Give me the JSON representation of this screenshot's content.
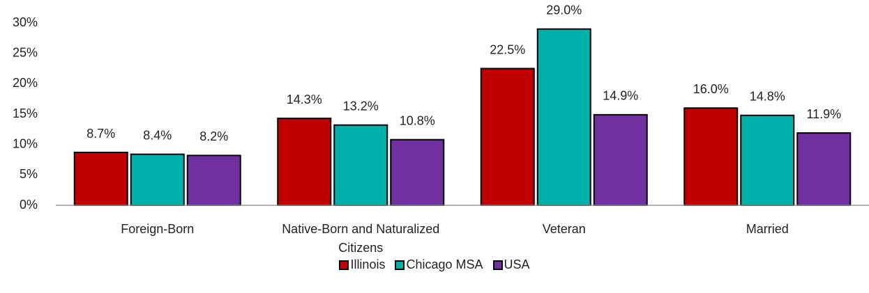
{
  "chart_data": {
    "type": "bar",
    "categories": [
      "Foreign-Born",
      "Native-Born and Naturalized Citizens",
      "Veteran",
      "Married"
    ],
    "series": [
      {
        "name": "Illinois",
        "color": "#c00000",
        "values": [
          8.7,
          14.3,
          22.5,
          16.0
        ],
        "value_labels": [
          "8.7%",
          "14.3%",
          "22.5%",
          "16.0%"
        ]
      },
      {
        "name": "Chicago MSA",
        "color": "#00b0aa",
        "values": [
          8.4,
          13.2,
          29.0,
          14.8
        ],
        "value_labels": [
          "8.4%",
          "13.2%",
          "29.0%",
          "14.8%"
        ]
      },
      {
        "name": "USA",
        "color": "#7030a0",
        "values": [
          8.2,
          10.8,
          14.9,
          11.9
        ],
        "value_labels": [
          "8.2%",
          "10.8%",
          "14.9%",
          "11.9%"
        ]
      }
    ],
    "ylim": [
      0,
      30
    ],
    "yticks": [
      {
        "value": 0,
        "label": "0%"
      },
      {
        "value": 5,
        "label": "5%"
      },
      {
        "value": 10,
        "label": "10%"
      },
      {
        "value": 15,
        "label": "15%"
      },
      {
        "value": 20,
        "label": "20%"
      },
      {
        "value": 25,
        "label": "25%"
      },
      {
        "value": 30,
        "label": "30%"
      }
    ],
    "grid": false,
    "legend": "bottom"
  }
}
